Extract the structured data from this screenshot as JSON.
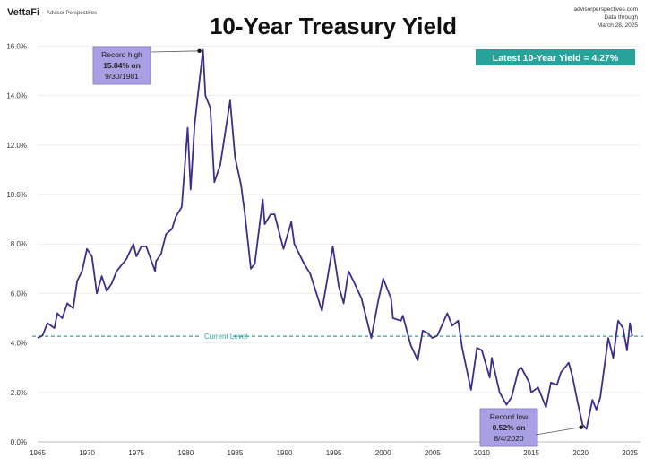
{
  "header": {
    "logo": "VettaFi",
    "logo_sub": "Advisor Perspectives",
    "source_lines": [
      "advisorperspectives.com",
      "Data through",
      "March 28, 2025"
    ]
  },
  "chart_data": {
    "type": "line",
    "title": "10-Year Treasury Yield",
    "xlabel": "",
    "ylabel": "",
    "xlim": [
      1965,
      2025.3
    ],
    "ylim": [
      0,
      16
    ],
    "x_ticks": [
      "1965",
      "1970",
      "1975",
      "1980",
      "1985",
      "1990",
      "1995",
      "2000",
      "2005",
      "2010",
      "2015",
      "2020",
      "2025"
    ],
    "y_ticks": [
      "0.0%",
      "2.0%",
      "4.0%",
      "6.0%",
      "8.0%",
      "10.0%",
      "12.0%",
      "14.0%",
      "16.0%"
    ],
    "grid": "horizontal",
    "colors": {
      "line": "#3b2f8c",
      "reference": "#2aa6a0",
      "badge": "#27a39b",
      "annotation": "#a99fe3"
    },
    "series": [
      {
        "x": [
          1965,
          1965.5,
          1966,
          1966.7,
          1967,
          1967.5,
          1968,
          1968.6,
          1969,
          1969.5,
          1970,
          1970.5,
          1971,
          1971.5,
          1972,
          1972.5,
          1973,
          1973.6,
          1974,
          1974.7,
          1975,
          1975.5,
          1976,
          1976.9,
          1977,
          1977.5,
          1978,
          1978.6,
          1979,
          1979.6,
          1980.2,
          1980.5,
          1980.9,
          1981.2,
          1981.75,
          1982,
          1982.5,
          1982.9,
          1983.5,
          1984.5,
          1985,
          1985.6,
          1986,
          1986.6,
          1987,
          1987.8,
          1988,
          1988.6,
          1989,
          1989.9,
          1990.7,
          1991,
          1992,
          1992.6,
          1993.8,
          1994.9,
          1995.5,
          1996,
          1996.5,
          1997,
          1997.8,
          1998.8,
          1999.5,
          2000,
          2000.8,
          2001,
          2001.8,
          2002,
          2002.8,
          2003.5,
          2004,
          2004.5,
          2005,
          2005.5,
          2006.5,
          2007,
          2007.6,
          2008,
          2008.9,
          2009.5,
          2010,
          2010.8,
          2011,
          2011.8,
          2012.5,
          2013,
          2013.7,
          2014,
          2014.8,
          2015,
          2015.7,
          2016.5,
          2017,
          2017.6,
          2018,
          2018.8,
          2019.2,
          2019.7,
          2020.2,
          2020.6,
          2021.2,
          2021.6,
          2022,
          2022.4,
          2022.8,
          2023.3,
          2023.8,
          2024.3,
          2024.7,
          2025,
          2025.24
        ],
        "y": [
          4.2,
          4.3,
          4.8,
          4.6,
          5.2,
          5.0,
          5.6,
          5.4,
          6.5,
          6.9,
          7.8,
          7.5,
          6.0,
          6.7,
          6.1,
          6.4,
          6.9,
          7.2,
          7.4,
          8.0,
          7.5,
          7.9,
          7.9,
          6.9,
          7.3,
          7.6,
          8.4,
          8.6,
          9.1,
          9.5,
          12.7,
          10.2,
          12.8,
          13.9,
          15.84,
          14.0,
          13.5,
          10.5,
          11.2,
          13.8,
          11.5,
          10.4,
          9.2,
          7.0,
          7.2,
          9.8,
          8.8,
          9.2,
          9.2,
          7.8,
          8.9,
          8.0,
          7.2,
          6.8,
          5.3,
          7.9,
          6.3,
          5.6,
          6.9,
          6.5,
          5.8,
          4.2,
          5.7,
          6.6,
          5.8,
          5.0,
          4.9,
          5.1,
          3.9,
          3.3,
          4.5,
          4.4,
          4.2,
          4.3,
          5.2,
          4.7,
          4.9,
          3.8,
          2.1,
          3.8,
          3.7,
          2.6,
          3.4,
          2.0,
          1.5,
          1.8,
          2.9,
          3.0,
          2.4,
          2.0,
          2.2,
          1.4,
          2.4,
          2.3,
          2.8,
          3.2,
          2.6,
          1.6,
          0.7,
          0.52,
          1.7,
          1.3,
          1.8,
          3.0,
          4.2,
          3.4,
          4.9,
          4.6,
          3.7,
          4.8,
          4.27
        ]
      }
    ],
    "reference_line": {
      "value": 4.27,
      "label": "Current Level"
    },
    "badge": "Latest 10-Year Yield = 4.27%",
    "annotations": [
      {
        "lines": [
          "Record high",
          "15.84% on",
          "9/30/1981"
        ],
        "x": 1981.75,
        "y": 15.84
      },
      {
        "lines": [
          "Record low",
          "0.52% on",
          "8/4/2020"
        ],
        "x": 2020.6,
        "y": 0.52
      }
    ]
  }
}
